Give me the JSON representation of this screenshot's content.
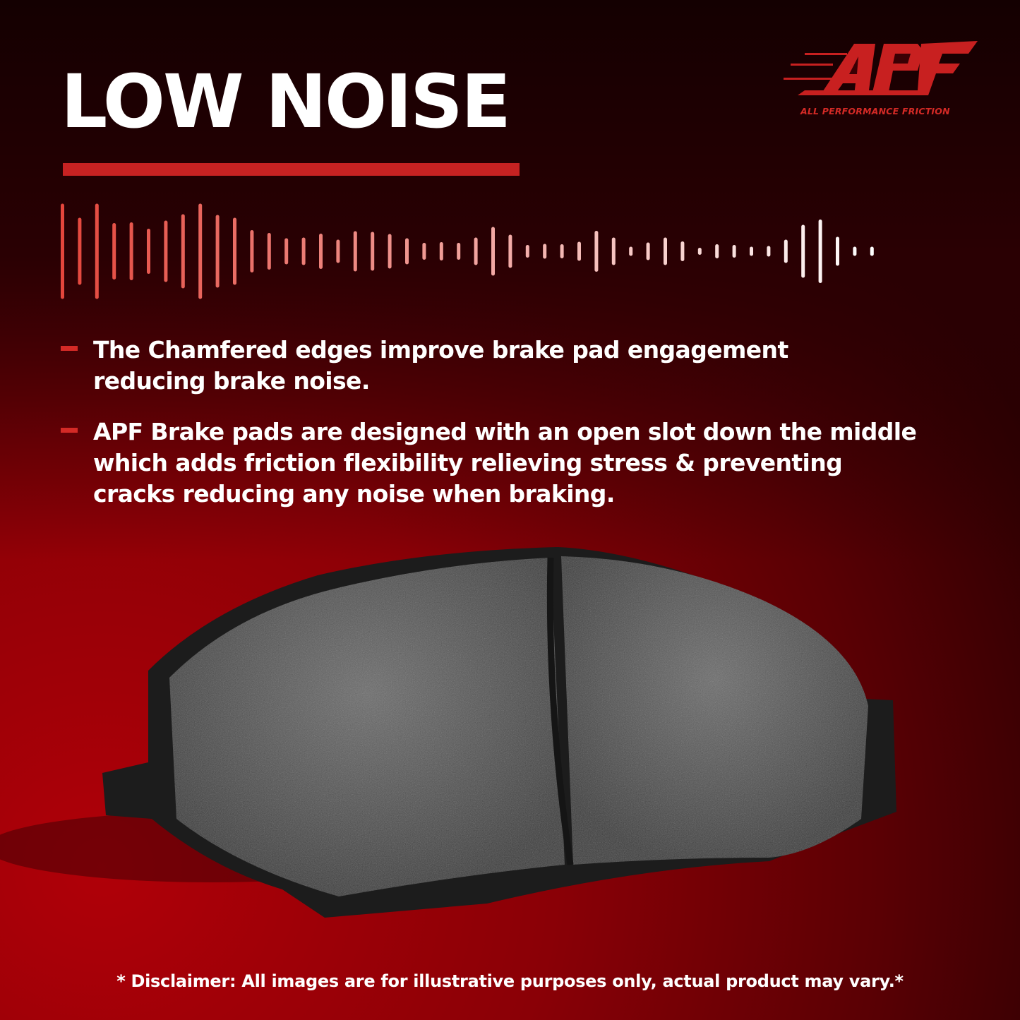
{
  "headline": "LOW NOISE",
  "brand": {
    "logo_text": "APF",
    "tagline": "ALL PERFORMANCE FRICTION",
    "color": "#d42a26"
  },
  "bullets": [
    {
      "text": "The Chamfered edges improve brake pad engagement\nreducing brake noise."
    },
    {
      "text": "APF Brake pads are designed with an open slot down the middle\nwhich adds friction flexibility relieving stress & preventing\n cracks reducing any noise when braking."
    }
  ],
  "product_image": "brake-pad",
  "disclaimer": "* Disclaimer: All images are for illustrative purposes only, actual product may vary.*",
  "colors": {
    "accent": "#c62222",
    "background": "#8a0006",
    "text": "#ffffff"
  }
}
